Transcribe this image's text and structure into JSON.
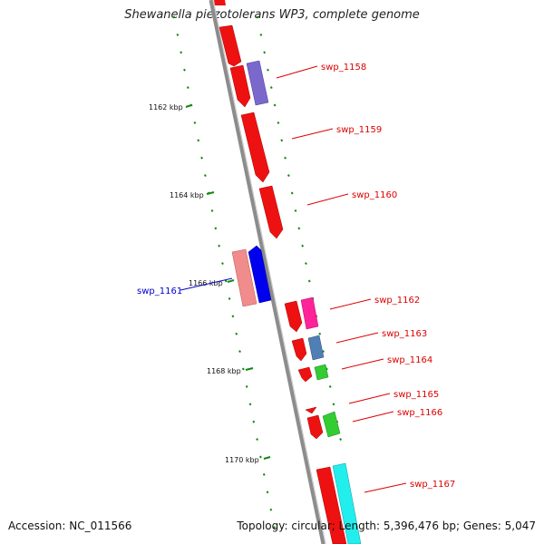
{
  "title": "Shewanella piezotolerans WP3, complete genome",
  "accession": "Accession: NC_011566",
  "topology": "Topology: circular; Length: 5,396,476 bp; Genes: 5,047",
  "kbp_labels": [
    "1162 kbp",
    "1164 kbp",
    "1166 kbp",
    "1168 kbp",
    "1170 kbp"
  ],
  "genes": [
    {
      "label": "swp_1158",
      "color": "#dd0000"
    },
    {
      "label": "swp_1159",
      "color": "#dd0000"
    },
    {
      "label": "swp_1160",
      "color": "#dd0000"
    },
    {
      "label": "swp_1161",
      "color": "#0000cc"
    },
    {
      "label": "swp_1162",
      "color": "#dd0000"
    },
    {
      "label": "swp_1163",
      "color": "#dd0000"
    },
    {
      "label": "swp_1164",
      "color": "#dd0000"
    },
    {
      "label": "swp_1165",
      "color": "#dd0000"
    },
    {
      "label": "swp_1166",
      "color": "#dd0000"
    },
    {
      "label": "swp_1167",
      "color": "#dd0000"
    }
  ],
  "colors": {
    "backbone": "#8c8c8c",
    "tick": "#118811",
    "red_feature": "#ee1111",
    "purple_feature": "#7a68cc",
    "pink_feature": "#f08c8c",
    "blue_feature": "#0000ee",
    "magenta_feature": "#ff2299",
    "steelblue_feature": "#4f7fb5",
    "green_feature": "#33cc33",
    "cyan_feature": "#22eeee"
  }
}
